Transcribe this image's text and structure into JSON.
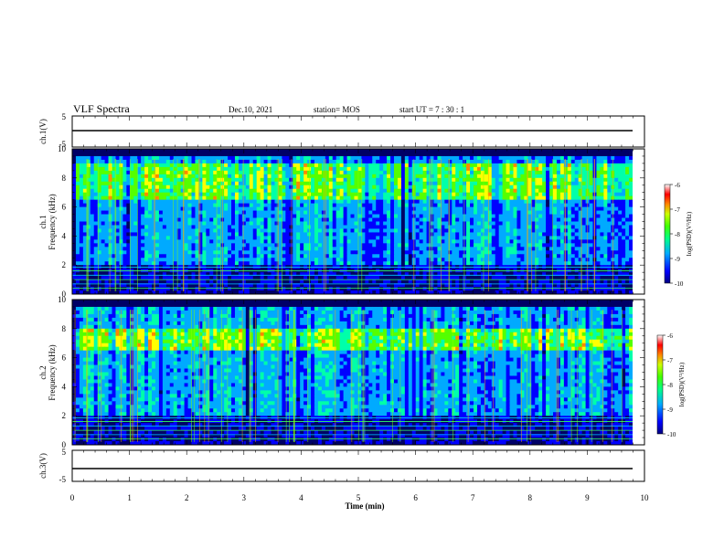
{
  "header": {
    "title": "VLF Spectra",
    "date": "Dec.10, 2021",
    "station": "station= MOS",
    "start_ut": "start  UT =   7 : 30 : 1"
  },
  "chart_data": [
    {
      "id": "ch1-waveform",
      "type": "line",
      "title": "",
      "xlabel": "",
      "ylabel": "ch.1(V)",
      "xlim": [
        0,
        10
      ],
      "ylim": [
        -5,
        5
      ],
      "yticks": [
        "5",
        "-5"
      ],
      "series": [
        {
          "x": [
            0,
            9.8
          ],
          "y": [
            0,
            0
          ]
        }
      ]
    },
    {
      "id": "ch1-spectrogram",
      "type": "heatmap",
      "xlabel": "",
      "ylabel": [
        "ch.1",
        "Frequency (kHz)"
      ],
      "xlim": [
        0,
        10
      ],
      "ylim": [
        0,
        10
      ],
      "yticks": [
        "0",
        "2",
        "4",
        "6",
        "8",
        "10"
      ],
      "colorbar": {
        "label": "log(PSD)(V²/Hz)",
        "range": [
          -10,
          -6
        ],
        "ticks": [
          "-6",
          "-7",
          "-8",
          "-9",
          "-10"
        ]
      },
      "intense_band_khz": [
        6.5,
        9
      ],
      "background_floor_khz": 2
    },
    {
      "id": "ch2-spectrogram",
      "type": "heatmap",
      "xlabel": "",
      "ylabel": [
        "ch.2",
        "Frequency (kHz)"
      ],
      "xlim": [
        0,
        10
      ],
      "ylim": [
        0,
        10
      ],
      "yticks": [
        "0",
        "2",
        "4",
        "6",
        "8",
        "10"
      ],
      "colorbar": {
        "label": "log(PSD)(V²/Hz)",
        "range": [
          -10,
          -6
        ],
        "ticks": [
          "-6",
          "-7",
          "-8",
          "-9",
          "-10"
        ]
      },
      "intense_band_khz": [
        6.5,
        8
      ],
      "background_floor_khz": 2
    },
    {
      "id": "ch3-waveform",
      "type": "line",
      "xlabel": "Time  (min)",
      "ylabel": "ch.3(V)",
      "xlim": [
        0,
        10
      ],
      "ylim": [
        -5,
        5
      ],
      "yticks": [
        "5",
        "-5"
      ],
      "xticks": [
        "0",
        "1",
        "2",
        "3",
        "4",
        "5",
        "6",
        "7",
        "8",
        "9",
        "10"
      ],
      "series": [
        {
          "x": [
            0,
            9.8
          ],
          "y": [
            0,
            0
          ]
        }
      ]
    }
  ],
  "colors": {
    "frame": "#000000",
    "colormap": [
      "#000066",
      "#0000ff",
      "#00aaff",
      "#00ffaa",
      "#55ff00",
      "#ffff00",
      "#ff8800",
      "#ff0000",
      "#ffffff"
    ]
  }
}
